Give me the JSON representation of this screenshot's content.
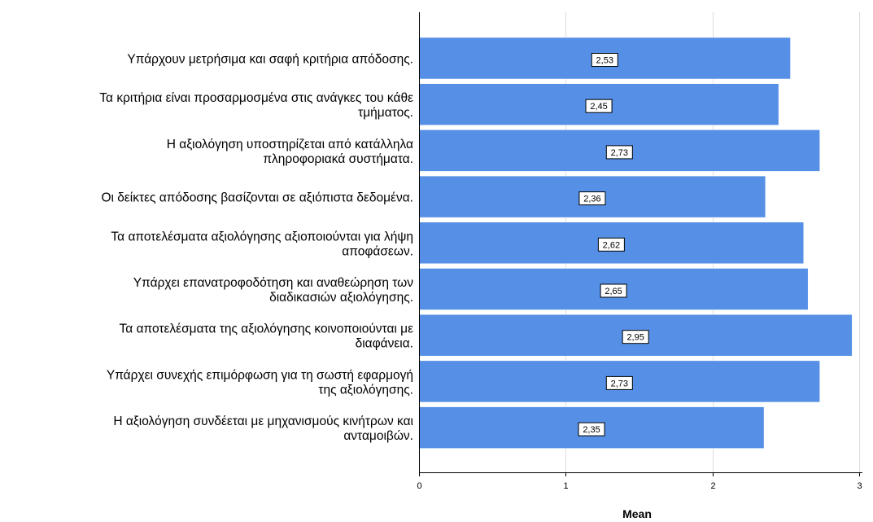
{
  "chart_data": {
    "type": "bar",
    "orientation": "horizontal",
    "categories": [
      [
        "Υπάρχουν μετρήσιμα και σαφή κριτήρια απόδοσης."
      ],
      [
        "Τα κριτήρια είναι προσαρμοσμένα στις ανάγκες του κάθε",
        "τμήματος."
      ],
      [
        "Η αξιολόγηση υποστηρίζεται από κατάλληλα",
        "πληροφοριακά συστήματα."
      ],
      [
        "Οι δείκτες απόδοσης βασίζονται σε αξιόπιστα δεδομένα."
      ],
      [
        "Τα αποτελέσματα αξιολόγησης αξιοποιούνται για λήψη",
        "αποφάσεων."
      ],
      [
        "Υπάρχει επανατροφοδότηση και αναθεώρηση των",
        "διαδικασιών αξιολόγησης."
      ],
      [
        "Τα αποτελέσματα της αξιολόγησης κοινοποιούνται με",
        "διαφάνεια."
      ],
      [
        "Υπάρχει συνεχής επιμόρφωση για τη σωστή εφαρμογή",
        "της αξιολόγησης."
      ],
      [
        "Η αξιολόγηση συνδέεται με μηχανισμούς κινήτρων και",
        "ανταμοιβών."
      ]
    ],
    "values": [
      2.53,
      2.45,
      2.73,
      2.36,
      2.62,
      2.65,
      2.95,
      2.73,
      2.35
    ],
    "data_labels": [
      "2,53",
      "2,45",
      "2,73",
      "2,36",
      "2,62",
      "2,65",
      "2,95",
      "2,73",
      "2,35"
    ],
    "xlabel": "Mean",
    "xlim": [
      0,
      3
    ],
    "xticks": [
      0,
      1,
      2,
      3
    ],
    "xtick_labels": [
      "0",
      "1",
      "2",
      "3"
    ],
    "grid": true,
    "bar_color": "#5590e6",
    "bar_edge_color": "#ffffff"
  }
}
